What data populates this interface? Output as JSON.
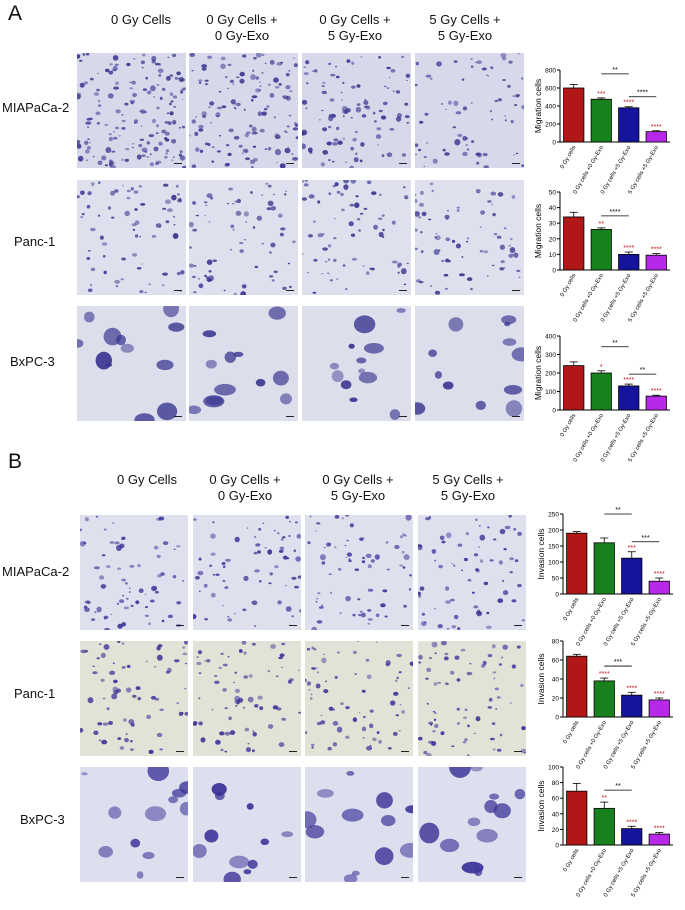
{
  "panels": [
    {
      "letter": "A",
      "columns": [
        "0 Gy Cells",
        "0 Gy Cells +\n0 Gy-Exo",
        "0 Gy Cells +\n5 Gy-Exo",
        "5 Gy Cells +\n5 Gy-Exo"
      ],
      "rows": [
        "MIAPaCa-2",
        "Panc-1",
        "BxPC-3"
      ]
    },
    {
      "letter": "B",
      "columns": [
        "0 Gy Cells",
        "0 Gy Cells +\n0 Gy-Exo",
        "0 Gy Cells +\n5 Gy-Exo",
        "5 Gy Cells +\n5 Gy-Exo"
      ],
      "rows": [
        "MIAPaCa-2",
        "Panc-1",
        "BxPC-3"
      ]
    }
  ],
  "micrograph_style": {
    "A": {
      "backgrounds": [
        "#d7d8ea",
        "#dfe0ee",
        "#dddeec"
      ],
      "stain": "#3a3690"
    },
    "B": {
      "backgrounds": [
        "#dfe0ee",
        "#e2e2d6",
        "#dedfee"
      ],
      "stain": "#3d3599"
    }
  },
  "colors": [
    "#b01818",
    "#18801c",
    "#14149c",
    "#b828e8"
  ],
  "chart_data": [
    {
      "type": "bar",
      "panel": "A",
      "row": "MIAPaCa-2",
      "categories": [
        "0 Gy cells",
        "0 Gy cells +0 Gy-Exo",
        "0 Gy cells +5 Gy-Exo",
        "5 Gy cells +5 Gy-Exo"
      ],
      "values": [
        600,
        475,
        380,
        115
      ],
      "errors": [
        40,
        15,
        12,
        10
      ],
      "ylabel": "Migration cells",
      "ylim": [
        0,
        800
      ],
      "yticks": [
        0,
        200,
        400,
        600,
        800
      ],
      "bar_marks": [
        "",
        "***",
        "****",
        "****"
      ],
      "brackets": [
        {
          "from": 1,
          "to": 2,
          "label": "**"
        },
        {
          "from": 2,
          "to": 3,
          "label": "****"
        }
      ]
    },
    {
      "type": "bar",
      "panel": "A",
      "row": "Panc-1",
      "categories": [
        "0 Gy cells",
        "0 Gy cells +0 Gy-Exo",
        "0 Gy cells +5 Gy-Exo",
        "5 Gy cells +5 Gy-Exo"
      ],
      "values": [
        34,
        26,
        10,
        9.5
      ],
      "errors": [
        3,
        1,
        1.5,
        1
      ],
      "ylabel": "Migration cells",
      "ylim": [
        0,
        50
      ],
      "yticks": [
        0,
        10,
        20,
        30,
        40,
        50
      ],
      "bar_marks": [
        "",
        "**",
        "****",
        "****"
      ],
      "brackets": [
        {
          "from": 1,
          "to": 2,
          "label": "****"
        }
      ]
    },
    {
      "type": "bar",
      "panel": "A",
      "row": "BxPC-3",
      "categories": [
        "0 Gy cells",
        "0 Gy cells +0 Gy-Exo",
        "0 Gy cells +5 Gy-Exo",
        "5 Gy cells +5 Gy-Exo"
      ],
      "values": [
        240,
        200,
        130,
        75
      ],
      "errors": [
        20,
        12,
        10,
        5
      ],
      "ylabel": "Migration cells",
      "ylim": [
        0,
        400
      ],
      "yticks": [
        0,
        100,
        200,
        300,
        400
      ],
      "bar_marks": [
        "",
        "*",
        "****",
        "****"
      ],
      "brackets": [
        {
          "from": 1,
          "to": 2,
          "label": "**"
        },
        {
          "from": 2,
          "to": 3,
          "label": "**"
        }
      ]
    },
    {
      "type": "bar",
      "panel": "B",
      "row": "MIAPaCa-2",
      "categories": [
        "0 Gy cells",
        "0 Gy cells +0 Gy-Exo",
        "0 Gy cells +5 Gy-Exo",
        "5 Gy cells +5 Gy-Exo"
      ],
      "values": [
        190,
        160,
        112,
        40
      ],
      "errors": [
        5,
        15,
        20,
        10
      ],
      "ylabel": "Invasion cells",
      "ylim": [
        0,
        250
      ],
      "yticks": [
        0,
        50,
        100,
        150,
        200,
        250
      ],
      "bar_marks": [
        "",
        "",
        "***",
        "****"
      ],
      "brackets": [
        {
          "from": 1,
          "to": 2,
          "label": "**"
        },
        {
          "from": 2,
          "to": 3,
          "label": "***"
        }
      ]
    },
    {
      "type": "bar",
      "panel": "B",
      "row": "Panc-1",
      "categories": [
        "0 Gy cells",
        "0 Gy cells +0 Gy-Exo",
        "0 Gy cells +5 Gy-Exo",
        "5 Gy cells +5 Gy-Exo"
      ],
      "values": [
        64,
        38,
        23,
        18
      ],
      "errors": [
        2,
        3,
        3,
        2
      ],
      "ylabel": "Invasion cells",
      "ylim": [
        0,
        80
      ],
      "yticks": [
        0,
        20,
        40,
        60,
        80
      ],
      "bar_marks": [
        "",
        "****",
        "****",
        "****"
      ],
      "brackets": [
        {
          "from": 1,
          "to": 2,
          "label": "***"
        }
      ]
    },
    {
      "type": "bar",
      "panel": "B",
      "row": "BxPC-3",
      "categories": [
        "0 Gy cells",
        "0 Gy cells +0 Gy-Exo",
        "0 Gy cells +5 Gy-Exo",
        "5 Gy cells +5 Gy-Exo"
      ],
      "values": [
        69,
        47,
        21,
        14
      ],
      "errors": [
        10,
        8,
        3,
        2
      ],
      "ylabel": "Invasion cells",
      "ylim": [
        0,
        100
      ],
      "yticks": [
        0,
        20,
        40,
        60,
        80,
        100
      ],
      "bar_marks": [
        "",
        "**",
        "****",
        "****"
      ],
      "brackets": [
        {
          "from": 1,
          "to": 2,
          "label": "**"
        }
      ]
    }
  ]
}
